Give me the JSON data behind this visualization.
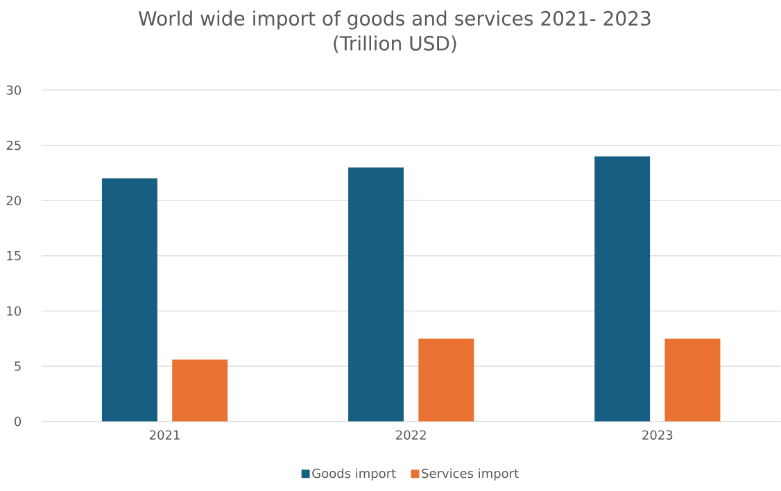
{
  "chart_data": {
    "type": "bar",
    "title": "World wide import of goods and services 2021- 2023",
    "subtitle": "(Trillion USD)",
    "categories": [
      "2021",
      "2022",
      "2023"
    ],
    "series": [
      {
        "name": "Goods import",
        "color": "#175f82",
        "values": [
          22,
          23,
          24
        ]
      },
      {
        "name": "Services import",
        "color": "#e97132",
        "values": [
          5.6,
          7.5,
          7.5
        ]
      }
    ],
    "ylim": [
      0,
      30
    ],
    "yticks": [
      0,
      5,
      10,
      15,
      20,
      25,
      30
    ],
    "grid": "y",
    "legend": "bottom"
  }
}
